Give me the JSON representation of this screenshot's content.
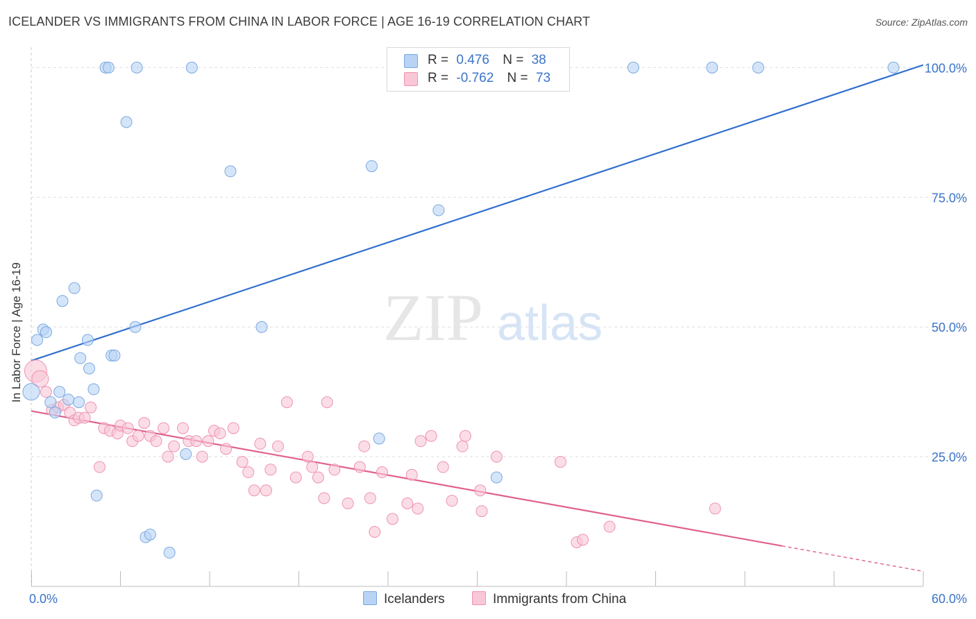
{
  "title": "ICELANDER VS IMMIGRANTS FROM CHINA IN LABOR FORCE | AGE 16-19 CORRELATION CHART",
  "source": "Source: ZipAtlas.com",
  "watermark": {
    "zip": "ZIP",
    "atlas": "atlas"
  },
  "legend": {
    "rows": [
      {
        "r_label": "R =",
        "r_value": "0.476",
        "n_label": "N =",
        "n_value": "38"
      },
      {
        "r_label": "R =",
        "r_value": "-0.762",
        "n_label": "N =",
        "n_value": "73"
      }
    ]
  },
  "colors": {
    "blue_fill": "#b9d3f5",
    "blue_stroke": "#7aa8e0",
    "blue_line": "#2f6fce",
    "pink_fill": "#f9c7d6",
    "pink_stroke": "#ee93b2",
    "pink_line": "#e0608e",
    "tick_label": "#3a73c9",
    "grid": "#dddddd"
  },
  "chart_data": {
    "type": "scatter",
    "xlabel": "",
    "ylabel": "In Labor Force | Age 16-19",
    "x_tick_labels": [
      "0.0%",
      "60.0%"
    ],
    "y_tick_labels": [
      "25.0%",
      "50.0%",
      "75.0%",
      "100.0%"
    ],
    "xlim": [
      0,
      60
    ],
    "ylim": [
      0,
      105
    ],
    "y_ticks": [
      25,
      50,
      75,
      100
    ],
    "x_minor_ticks": [
      0,
      6,
      12,
      18,
      24,
      30,
      36,
      42,
      48,
      54,
      60
    ],
    "grid": true,
    "legend_position": "top-center",
    "series": [
      {
        "name": "Icelanders",
        "color": "#b9d3f5",
        "points": [
          [
            0.0,
            37.5
          ],
          [
            0.4,
            47.5
          ],
          [
            0.8,
            49.5
          ],
          [
            1.0,
            49.0
          ],
          [
            1.3,
            35.5
          ],
          [
            1.6,
            33.5
          ],
          [
            1.9,
            37.5
          ],
          [
            2.1,
            55.0
          ],
          [
            2.5,
            36.0
          ],
          [
            2.9,
            57.5
          ],
          [
            3.2,
            35.5
          ],
          [
            3.3,
            44.0
          ],
          [
            3.8,
            47.5
          ],
          [
            3.9,
            42.0
          ],
          [
            4.2,
            38.0
          ],
          [
            4.4,
            17.5
          ],
          [
            5.0,
            100.0
          ],
          [
            5.2,
            100.0
          ],
          [
            5.4,
            44.5
          ],
          [
            5.6,
            44.5
          ],
          [
            6.4,
            89.5
          ],
          [
            7.0,
            50.0
          ],
          [
            7.1,
            100.0
          ],
          [
            7.7,
            9.5
          ],
          [
            8.0,
            10.0
          ],
          [
            9.3,
            6.5
          ],
          [
            10.4,
            25.5
          ],
          [
            10.8,
            100.0
          ],
          [
            13.4,
            80.0
          ],
          [
            15.5,
            50.0
          ],
          [
            22.9,
            81.0
          ],
          [
            23.4,
            28.5
          ],
          [
            27.4,
            72.5
          ],
          [
            31.3,
            21.0
          ],
          [
            40.5,
            100.0
          ],
          [
            45.8,
            100.0
          ],
          [
            48.9,
            100.0
          ],
          [
            58.0,
            100.0
          ]
        ],
        "trend": {
          "x": [
            0.0,
            60.0
          ],
          "y": [
            43.5,
            100.5
          ]
        }
      },
      {
        "name": "Immigrants from China",
        "color": "#f9c7d6",
        "points": [
          [
            0.3,
            41.5
          ],
          [
            0.6,
            40.0
          ],
          [
            1.0,
            37.5
          ],
          [
            1.4,
            34.0
          ],
          [
            1.8,
            34.5
          ],
          [
            2.2,
            35.0
          ],
          [
            2.6,
            33.5
          ],
          [
            2.9,
            32.0
          ],
          [
            3.2,
            32.5
          ],
          [
            3.6,
            32.5
          ],
          [
            4.0,
            34.5
          ],
          [
            4.6,
            23.0
          ],
          [
            4.9,
            30.5
          ],
          [
            5.3,
            30.0
          ],
          [
            5.8,
            29.5
          ],
          [
            6.0,
            31.0
          ],
          [
            6.5,
            30.5
          ],
          [
            6.8,
            28.0
          ],
          [
            7.2,
            29.0
          ],
          [
            7.6,
            31.5
          ],
          [
            8.0,
            29.0
          ],
          [
            8.4,
            28.0
          ],
          [
            8.9,
            30.5
          ],
          [
            9.2,
            25.0
          ],
          [
            9.6,
            27.0
          ],
          [
            10.2,
            30.5
          ],
          [
            10.6,
            28.0
          ],
          [
            11.1,
            28.0
          ],
          [
            11.5,
            25.0
          ],
          [
            11.9,
            28.0
          ],
          [
            12.3,
            30.0
          ],
          [
            12.7,
            29.5
          ],
          [
            13.1,
            26.5
          ],
          [
            13.6,
            30.5
          ],
          [
            14.2,
            24.0
          ],
          [
            14.6,
            22.0
          ],
          [
            15.0,
            18.5
          ],
          [
            15.4,
            27.5
          ],
          [
            15.8,
            18.5
          ],
          [
            16.1,
            22.5
          ],
          [
            16.6,
            27.0
          ],
          [
            17.2,
            35.5
          ],
          [
            17.8,
            21.0
          ],
          [
            18.6,
            25.0
          ],
          [
            18.9,
            23.0
          ],
          [
            19.3,
            21.0
          ],
          [
            19.7,
            17.0
          ],
          [
            19.9,
            35.5
          ],
          [
            20.4,
            22.5
          ],
          [
            21.3,
            16.0
          ],
          [
            22.1,
            23.0
          ],
          [
            22.4,
            27.0
          ],
          [
            22.8,
            17.0
          ],
          [
            23.1,
            10.5
          ],
          [
            23.6,
            22.0
          ],
          [
            24.3,
            13.0
          ],
          [
            25.3,
            16.0
          ],
          [
            25.6,
            21.5
          ],
          [
            26.0,
            15.0
          ],
          [
            26.9,
            29.0
          ],
          [
            27.7,
            23.0
          ],
          [
            28.3,
            16.5
          ],
          [
            29.0,
            27.0
          ],
          [
            29.2,
            29.0
          ],
          [
            30.2,
            18.5
          ],
          [
            30.3,
            14.5
          ],
          [
            31.3,
            25.0
          ],
          [
            35.6,
            24.0
          ],
          [
            36.7,
            8.5
          ],
          [
            37.1,
            9.0
          ],
          [
            38.9,
            11.5
          ],
          [
            46.0,
            15.0
          ],
          [
            26.2,
            28.0
          ]
        ],
        "trend": {
          "x": [
            0.0,
            50.5
          ],
          "y": [
            33.8,
            7.8
          ]
        },
        "trend_dashed": {
          "x": [
            50.5,
            60.0
          ],
          "y": [
            7.8,
            2.9
          ]
        }
      }
    ]
  },
  "bottom_legend": [
    {
      "label": "Icelanders"
    },
    {
      "label": "Immigrants from China"
    }
  ]
}
